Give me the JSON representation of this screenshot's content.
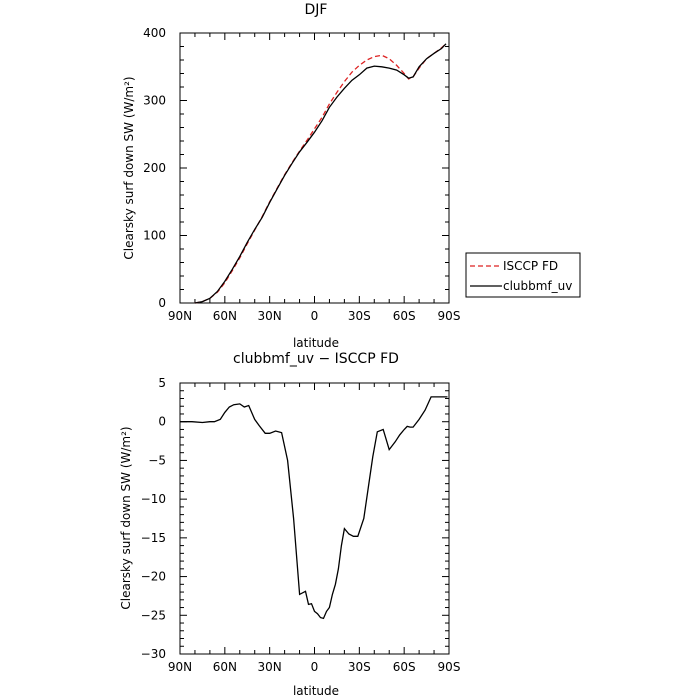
{
  "chart_data": [
    {
      "type": "line",
      "title": "DJF",
      "xlabel": "latitude",
      "ylabel": "Clearsky surf down SW (W/m²)",
      "xlim": [
        90,
        -90
      ],
      "ylim": [
        0,
        400
      ],
      "xticks": [
        90,
        60,
        30,
        0,
        -30,
        -60,
        -90
      ],
      "xtick_labels": [
        "90N",
        "60N",
        "30N",
        "0",
        "30S",
        "60S",
        "90S"
      ],
      "yticks": [
        0,
        100,
        200,
        300,
        400
      ],
      "ytick_labels": [
        "0",
        "100",
        "200",
        "300",
        "400"
      ],
      "legend": {
        "position": "right",
        "entries": [
          "ISCCP FD",
          "clubbmf_uv"
        ]
      },
      "series": [
        {
          "name": "ISCCP FD",
          "color": "#dd2222",
          "dash": "dashed",
          "x": [
            80,
            75,
            70,
            65,
            60,
            55,
            50,
            45,
            40,
            35,
            30,
            25,
            20,
            15,
            10,
            5,
            0,
            -5,
            -10,
            -15,
            -20,
            -25,
            -30,
            -35,
            -40,
            -45,
            -50,
            -55,
            -60,
            -63,
            -66,
            -70,
            -75,
            -80,
            -85,
            -88
          ],
          "y": [
            0,
            2,
            7,
            16,
            30,
            48,
            67,
            88,
            108,
            128,
            150,
            170,
            190,
            208,
            225,
            241,
            258,
            275,
            295,
            312,
            328,
            342,
            352,
            360,
            365,
            367,
            362,
            352,
            340,
            332,
            335,
            348,
            362,
            370,
            378,
            384
          ]
        },
        {
          "name": "clubbmf_uv",
          "color": "#000000",
          "dash": "solid",
          "x": [
            80,
            75,
            70,
            65,
            60,
            55,
            50,
            45,
            40,
            35,
            30,
            25,
            20,
            15,
            10,
            5,
            0,
            -5,
            -10,
            -15,
            -20,
            -25,
            -30,
            -35,
            -40,
            -45,
            -50,
            -55,
            -60,
            -63,
            -66,
            -70,
            -75,
            -80,
            -85,
            -88
          ],
          "y": [
            0,
            2,
            7,
            17,
            32,
            50,
            69,
            90,
            109,
            127,
            149,
            169,
            189,
            207,
            224,
            238,
            253,
            270,
            290,
            305,
            318,
            330,
            338,
            348,
            351,
            350,
            348,
            345,
            338,
            333,
            335,
            350,
            362,
            370,
            377,
            384
          ]
        }
      ]
    },
    {
      "type": "line",
      "title": "clubbmf_uv − ISCCP FD",
      "xlabel": "latitude",
      "ylabel": "Clearsky surf down SW (W/m²)",
      "xlim": [
        90,
        -90
      ],
      "ylim": [
        -30,
        5
      ],
      "xticks": [
        90,
        60,
        30,
        0,
        -30,
        -60,
        -90
      ],
      "xtick_labels": [
        "90N",
        "60N",
        "30N",
        "0",
        "30S",
        "60S",
        "90S"
      ],
      "yticks": [
        5,
        0,
        -5,
        -10,
        -15,
        -20,
        -25,
        -30
      ],
      "ytick_labels": [
        "5",
        "0",
        "−5",
        "−10",
        "−15",
        "−20",
        "−25",
        "−30"
      ],
      "series": [
        {
          "name": "clubbmf_uv",
          "color": "#000000",
          "dash": "solid",
          "x": [
            90,
            82,
            75,
            70,
            67,
            63,
            60,
            57,
            54,
            50,
            47,
            44,
            40,
            37,
            33,
            30,
            26,
            22,
            18,
            14,
            10,
            6,
            4,
            2,
            0,
            -2,
            -4,
            -6,
            -8,
            -10,
            -12,
            -14,
            -16,
            -18,
            -20,
            -23,
            -26,
            -29,
            -33,
            -36,
            -39,
            -42,
            -46,
            -50,
            -54,
            -57,
            -60,
            -62,
            -64,
            -66,
            -70,
            -74,
            -78,
            -82,
            -86,
            -89
          ],
          "y": [
            0,
            0,
            -0.1,
            0,
            0,
            0.3,
            1.2,
            1.9,
            2.2,
            2.3,
            1.9,
            2.1,
            0.3,
            -0.5,
            -1.5,
            -1.5,
            -1.2,
            -1.4,
            -5,
            -12.5,
            -22.3,
            -21.9,
            -23.6,
            -23.5,
            -24.5,
            -24.8,
            -25.3,
            -25.4,
            -24.5,
            -24.0,
            -22.3,
            -21.0,
            -19,
            -16,
            -13.8,
            -14.5,
            -14.8,
            -14.8,
            -12.5,
            -8.5,
            -4.5,
            -1.3,
            -1.0,
            -3.6,
            -2.6,
            -1.7,
            -1.0,
            -0.6,
            -0.7,
            -0.7,
            0.3,
            1.5,
            3.2,
            3.2,
            3.2,
            3.2
          ]
        }
      ]
    }
  ]
}
